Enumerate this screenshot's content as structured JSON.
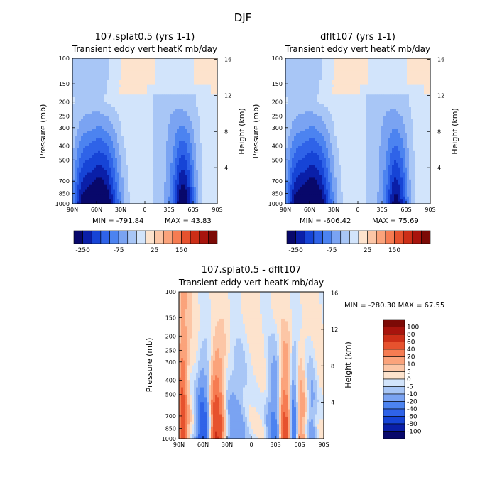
{
  "figure": {
    "title": "DJF",
    "colors": {
      "blue_scale": [
        "#08086b",
        "#0a1fa8",
        "#1644d6",
        "#2f63e8",
        "#4c83f0",
        "#7aa3f2",
        "#a8c6f6",
        "#d2e4fb"
      ],
      "red_scale": [
        "#fde3cd",
        "#fcc6a6",
        "#fba37b",
        "#f67c52",
        "#e6522e",
        "#cc2e17",
        "#a8140d",
        "#7c0a06"
      ]
    }
  },
  "chart_data": [
    {
      "type": "heatmap",
      "id": "left",
      "title": "107.splat0.5 (yrs 1-1)",
      "subtitle": "Transient eddy vert heatK mb/day",
      "ylabel": "Pressure (mb)",
      "y2label": "Height (km)",
      "xticks": [
        "90N",
        "60N",
        "30N",
        "0",
        "30S",
        "60S",
        "90S"
      ],
      "yticks": [
        "100",
        "150",
        "200",
        "250",
        "300",
        "400",
        "500",
        "700",
        "850",
        "1000"
      ],
      "y2ticks": [
        "16",
        "12",
        "8",
        "4"
      ],
      "min_label": "MIN = -791.84",
      "max_label": "MAX =  43.83",
      "min": -791.84,
      "max": 43.83,
      "colorbar_labels": [
        "-250",
        "-75",
        "25",
        "150"
      ],
      "colorbar_levels": [
        -300,
        -250,
        -200,
        -150,
        -100,
        -75,
        -50,
        -25,
        0,
        25,
        50,
        75,
        100,
        150,
        200,
        250
      ]
    },
    {
      "type": "heatmap",
      "id": "right",
      "title": "dflt107 (yrs 1-1)",
      "subtitle": "Transient eddy vert heatK mb/day",
      "ylabel": "Pressure (mb)",
      "y2label": "Height (km)",
      "xticks": [
        "90N",
        "60N",
        "30N",
        "0",
        "30S",
        "60S",
        "90S"
      ],
      "yticks": [
        "100",
        "150",
        "200",
        "250",
        "300",
        "400",
        "500",
        "700",
        "850",
        "1000"
      ],
      "y2ticks": [
        "16",
        "12",
        "8",
        "4"
      ],
      "min_label": "MIN = -606.42",
      "max_label": "MAX =  75.69",
      "min": -606.42,
      "max": 75.69,
      "colorbar_labels": [
        "-250",
        "-75",
        "25",
        "150"
      ],
      "colorbar_levels": [
        -300,
        -250,
        -200,
        -150,
        -100,
        -75,
        -50,
        -25,
        0,
        25,
        50,
        75,
        100,
        150,
        200,
        250
      ]
    },
    {
      "type": "heatmap",
      "id": "diff",
      "title": "107.splat0.5 - dflt107",
      "subtitle": "Transient eddy vert heatK mb/day",
      "ylabel": "Pressure (mb)",
      "y2label": "Height (km)",
      "xticks": [
        "90N",
        "60N",
        "30N",
        "0",
        "30S",
        "60S",
        "90S"
      ],
      "yticks": [
        "100",
        "150",
        "200",
        "250",
        "300",
        "400",
        "500",
        "700",
        "850",
        "1000"
      ],
      "y2ticks": [
        "16",
        "12",
        "8",
        "4"
      ],
      "minmax_label": "MIN = -280.30   MAX =  67.55",
      "min": -280.3,
      "max": 67.55,
      "colorbar_labels": [
        "100",
        "80",
        "60",
        "40",
        "20",
        "10",
        "5",
        "0",
        "-5",
        "-10",
        "-20",
        "-40",
        "-60",
        "-80",
        "-100"
      ]
    }
  ]
}
